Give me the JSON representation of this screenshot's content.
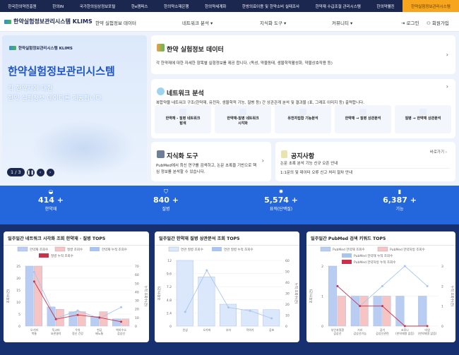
{
  "topnav": [
    "한국한의약진흥원",
    "한의IN",
    "국가한의임상정보포털",
    "한e캠퍼스",
    "한의약소재은행",
    "한의약세계화",
    "한방의료이용 및 한약소비 실태조사",
    "한약재 수급조절 관리시스템",
    "한의약웰진",
    "한약실험정보관리시스템"
  ],
  "header": {
    "logo": "한약실험정보관리시스템 KLIMS",
    "menu": [
      "한약 실험정보 데이터",
      "네트워크 분석 ▾",
      "지식화 도구 ▾",
      "커뮤니티 ▾"
    ],
    "login": "⇥ 로그인",
    "signup": "회원가입"
  },
  "hero": {
    "title": "한약실험정보관리시스템",
    "text": "각 한약재에 대한\n한약 실험정보 데이터를 제공합니다.",
    "pager": "1 / 3"
  },
  "data_card": {
    "title": "한약 실험정보 데이터",
    "desc": "각 한약재에 대한 자세한 항목별 실험정보를 제공 합니다. (독성, 약물동태, 생물학적활성화, 약물상호작용 등)"
  },
  "network": {
    "title": "네트워크 분석",
    "desc": "복합약물 네트워크 구조(한약재, 유전자, 생물학적 기능, 질병 등) 간 상관관계 분석 및 결과물 (표, 그래프 이미지 등) 출력합니다.",
    "items": [
      "한약재 - 질병 네트워크\n탐색",
      "한약재-질병 네트워크\n시각화",
      "유전자집합 기능분석",
      "한약재 → 질병 상관분석",
      "질병 → 한약재 상관분석"
    ]
  },
  "knowledge": {
    "title": "지식화 도구",
    "desc": "PubMed에서 최신 연구를 검색하고, 논문 초록을 기반으로 핵심 정보를 분석할 수 있습니다."
  },
  "notice": {
    "title": "공지사항",
    "more": "바로가기 ›",
    "items": [
      "논문 초록 분석 기능 신규 오픈 안내",
      "1:1문의 및 데이터 오류 신고 처리 절차 안내"
    ]
  },
  "stats": [
    {
      "icon": "bowl-icon",
      "value": "414 +",
      "label": "한약재"
    },
    {
      "icon": "shield-icon",
      "value": "840 +",
      "label": "질병"
    },
    {
      "icon": "virus-icon",
      "value": "5,574 +",
      "label": "표적(단백질)"
    },
    {
      "icon": "document-icon",
      "value": "6,387 +",
      "label": "기능"
    }
  ],
  "colors": {
    "navy": "#1c2750",
    "accent": "#f6a51c",
    "blue": "#2466db"
  },
  "chart_data": [
    {
      "type": "bar",
      "title": "일주일간 네트워크 시각화 조회 한약재 · 질병 TOP5",
      "categories": [
        "오가피\n복통",
        "독고피\n요관결석",
        "우차\n정신 건강",
        "천궁\n배뇨통",
        "백하수오\n갑상선"
      ],
      "ylabel": "조회수(건)",
      "y2label": "누적 조회수(건)",
      "ylim": [
        0,
        25
      ],
      "y2lim": [
        0,
        70
      ],
      "series": [
        {
          "name": "한약재 조회수",
          "kind": "bar",
          "axis": "y",
          "values": [
            25,
            8,
            6,
            4,
            3
          ],
          "color": "#b9cdf3"
        },
        {
          "name": "질병 조회수",
          "kind": "bar",
          "axis": "y",
          "values": [
            25,
            7,
            6,
            6,
            3
          ],
          "color": "#f7c4c4"
        },
        {
          "name": "한약재 누적 조회수",
          "kind": "line",
          "axis": "y2",
          "values": [
            63,
            9,
            18,
            9,
            22
          ],
          "color": "#a9c4ee"
        },
        {
          "name": "질병 누적 조회수",
          "kind": "line",
          "axis": "y2",
          "values": [
            52,
            8,
            13,
            10,
            5
          ],
          "color": "#c8324a"
        }
      ]
    },
    {
      "type": "bar",
      "title": "일주일간 한약재 질병 상관분석 조회 TOP5",
      "categories": [
        "인삼",
        "오가피",
        "부자",
        "작약가",
        "감초"
      ],
      "ylabel": "조회수(건)",
      "y2label": "누적 조회수(건)",
      "ylim": [
        0,
        12
      ],
      "y2lim": [
        0,
        60
      ],
      "series": [
        {
          "name": "연관 질병 조회수",
          "kind": "bar",
          "axis": "y",
          "values": [
            12,
            9,
            4,
            3,
            3
          ],
          "color": "#dbe8fb"
        },
        {
          "name": "연관 질병 누적 조회수",
          "kind": "line",
          "axis": "y2",
          "values": [
            13,
            51,
            17,
            14,
            7
          ],
          "color": "#a9c4ee"
        }
      ]
    },
    {
      "type": "bar",
      "title": "일주일간 PubMed 검색 키워드 TOP5",
      "categories": [
        "부인과질환\n갑상선",
        "거리\n갑상선기능",
        "감기\n갑상선관련",
        "코로나\n(한약재명 없음)",
        "비염\n(한약재명 없음)"
      ],
      "ylabel": "조회수(건)",
      "y2label": "누적 조회수(건)",
      "ylim": [
        0,
        2
      ],
      "y2lim": [
        0,
        3
      ],
      "series": [
        {
          "name": "PubMed 한약재 조회수",
          "kind": "bar",
          "axis": "y",
          "values": [
            2,
            1,
            1,
            1,
            1
          ],
          "color": "#b9cdf3"
        },
        {
          "name": "PubMed 한약처방 조회수",
          "kind": "bar",
          "axis": "y",
          "values": [
            1,
            1,
            1,
            0,
            0
          ],
          "color": "#f7c4c4"
        },
        {
          "name": "PubMed 한약재 누적 조회수",
          "kind": "line",
          "axis": "y2",
          "values": [
            2,
            1,
            2,
            3,
            2
          ],
          "color": "#a9c4ee"
        },
        {
          "name": "PubMed 한약처방 누적 조회수",
          "kind": "line",
          "axis": "y2",
          "values": [
            2,
            1,
            1,
            0,
            0
          ],
          "color": "#c8324a"
        }
      ]
    }
  ]
}
